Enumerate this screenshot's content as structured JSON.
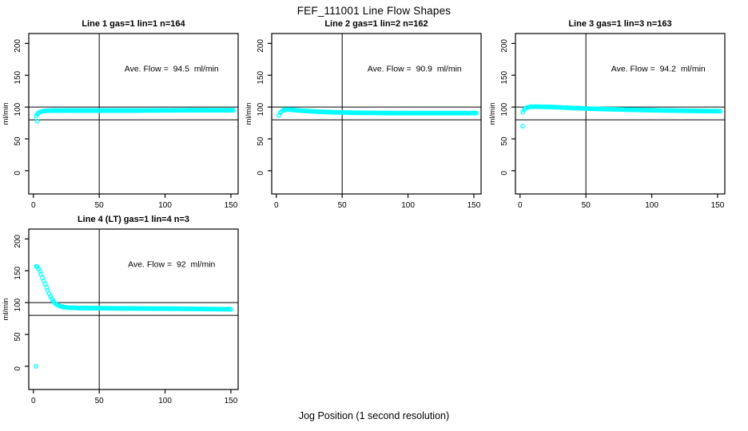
{
  "page_title": "FEF_111001  Line Flow Shapes",
  "xlabel": "Jog Position (1 second resolution)",
  "colors": {
    "marker": "#00FFFF",
    "axis": "#000000",
    "background": "#FFFFFF"
  },
  "axes": {
    "ylabel": "ml/min",
    "x_ticks": [
      0,
      50,
      100,
      150
    ],
    "y_ticks": [
      0,
      50,
      100,
      150,
      200
    ],
    "xlim": [
      -3.5,
      155.5
    ],
    "ylim": [
      -36.5,
      215.5
    ],
    "ref_line_x": 50,
    "ref_lines_y": [
      100,
      80
    ],
    "grid": false,
    "legend": "none"
  },
  "chart_data": [
    {
      "type": "scatter",
      "title": "Line 1 gas=1 lin=1 n=164",
      "n": 164,
      "annotation": "Ave. Flow =  94.5  ml/min",
      "ave_flow": 94.5,
      "x_start": 2,
      "x_end": 152,
      "anchors": [
        [
          2,
          86
        ],
        [
          3,
          89
        ],
        [
          4,
          91
        ],
        [
          6,
          93
        ],
        [
          9,
          94
        ],
        [
          15,
          94.5
        ],
        [
          40,
          94.5
        ],
        [
          80,
          94.5
        ],
        [
          120,
          95
        ],
        [
          152,
          95
        ]
      ],
      "outliers": [
        [
          3,
          78
        ]
      ]
    },
    {
      "type": "scatter",
      "title": "Line 2 gas=1 lin=2 n=162",
      "n": 162,
      "annotation": "Ave. Flow =  90.9  ml/min",
      "ave_flow": 90.9,
      "x_start": 2,
      "x_end": 152,
      "anchors": [
        [
          2,
          87
        ],
        [
          3,
          91
        ],
        [
          5,
          95
        ],
        [
          7,
          96
        ],
        [
          10,
          96
        ],
        [
          15,
          95
        ],
        [
          25,
          93.5
        ],
        [
          40,
          92
        ],
        [
          60,
          91
        ],
        [
          90,
          90.5
        ],
        [
          152,
          90.5
        ]
      ],
      "outliers": []
    },
    {
      "type": "scatter",
      "title": "Line 3 gas=1 lin=3 n=163",
      "n": 163,
      "annotation": "Ave. Flow =  94.2  ml/min",
      "ave_flow": 94.2,
      "x_start": 2,
      "x_end": 152,
      "anchors": [
        [
          2,
          92
        ],
        [
          3,
          96
        ],
        [
          5,
          99
        ],
        [
          8,
          100.5
        ],
        [
          15,
          100.5
        ],
        [
          25,
          100
        ],
        [
          40,
          98.5
        ],
        [
          60,
          97
        ],
        [
          80,
          96
        ],
        [
          100,
          95
        ],
        [
          130,
          94
        ],
        [
          152,
          93.5
        ]
      ],
      "outliers": [
        [
          2,
          70
        ]
      ]
    },
    {
      "type": "scatter",
      "title": "Line 4 (LT) gas=1 lin=4 n=3",
      "n": 3,
      "annotation": "Ave. Flow =  92  ml/min",
      "ave_flow": 92,
      "x_start": 2,
      "x_end": 150,
      "anchors": [
        [
          2,
          157
        ],
        [
          3,
          156.5
        ],
        [
          4,
          153
        ],
        [
          5,
          149
        ],
        [
          6,
          144
        ],
        [
          7,
          139
        ],
        [
          8,
          134
        ],
        [
          9,
          129
        ],
        [
          10,
          124
        ],
        [
          11,
          119
        ],
        [
          12,
          114
        ],
        [
          13,
          110
        ],
        [
          14,
          106
        ],
        [
          15,
          103
        ],
        [
          16,
          100
        ],
        [
          17,
          98
        ],
        [
          18,
          96.5
        ],
        [
          20,
          94.5
        ],
        [
          23,
          93
        ],
        [
          27,
          92
        ],
        [
          35,
          91.5
        ],
        [
          60,
          91
        ],
        [
          100,
          90.5
        ],
        [
          130,
          90
        ],
        [
          150,
          89.5
        ]
      ],
      "outliers": [
        [
          2,
          0
        ]
      ]
    }
  ]
}
